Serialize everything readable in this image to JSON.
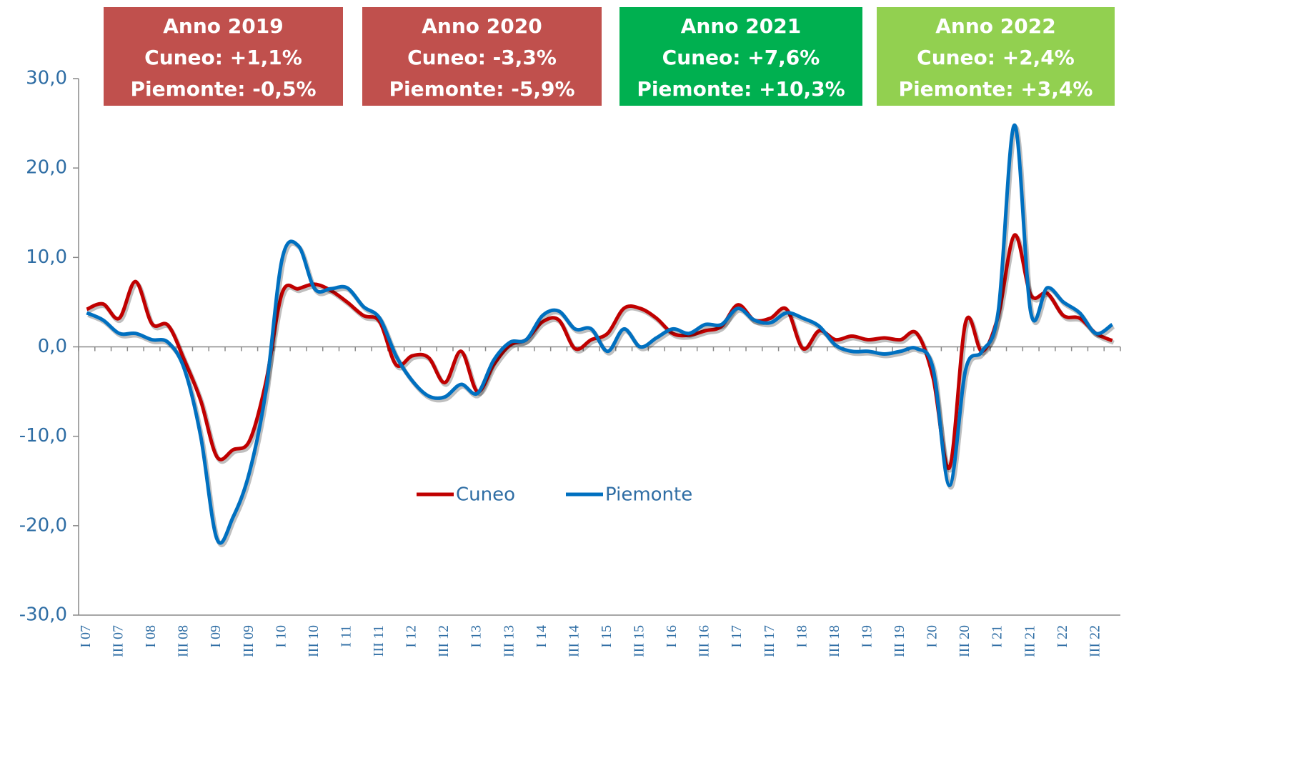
{
  "chart_data": {
    "type": "line",
    "categories": [
      "I 07",
      null,
      "III 07",
      null,
      "I 08",
      null,
      "III 08",
      null,
      "I 09",
      null,
      "III 09",
      null,
      "I 10",
      null,
      "III 10",
      null,
      "I 11",
      null,
      "III 11",
      null,
      "I 12",
      null,
      "III 12",
      null,
      "I 13",
      null,
      "III 13",
      null,
      "I 14",
      null,
      "III 14",
      null,
      "I 15",
      null,
      "III 15",
      null,
      "I 16",
      null,
      "III 16",
      null,
      "I 17",
      null,
      "III 17",
      null,
      "I 18",
      null,
      "III 18",
      null,
      "I 19",
      null,
      "III 19",
      null,
      "I 20",
      null,
      "III 20",
      null,
      "I 21",
      null,
      "III 21",
      null,
      "I 22",
      null,
      "III 22",
      null
    ],
    "series": [
      {
        "name": "Cuneo",
        "color": "#c00000",
        "values": [
          4.2,
          4.8,
          3.2,
          7.3,
          2.6,
          2.4,
          -1.5,
          -6,
          -12.3,
          -11.5,
          -10.5,
          -4,
          6.0,
          6.5,
          7.0,
          6.3,
          5.0,
          3.5,
          2.8,
          -2.0,
          -1.0,
          -1.2,
          -4.0,
          -0.5,
          -5.0,
          -2.0,
          0.2,
          0.8,
          2.8,
          3.0,
          -0.2,
          0.8,
          1.5,
          4.3,
          4.3,
          3.2,
          1.5,
          1.3,
          1.8,
          2.3,
          4.7,
          3.0,
          3.2,
          4.2,
          -0.2,
          1.8,
          0.8,
          1.2,
          0.8,
          1.0,
          0.8,
          1.5,
          -3.5,
          -13.5,
          2.8,
          -0.5,
          3.5,
          12.5,
          5.8,
          6.0,
          3.5,
          3.2,
          1.5,
          0.7
        ]
      },
      {
        "name": "Piemonte",
        "color": "#0070c0",
        "values": [
          3.8,
          3.0,
          1.5,
          1.5,
          0.8,
          0.5,
          -2.5,
          -10,
          -21.5,
          -19,
          -14,
          -5,
          9.8,
          11.3,
          6.5,
          6.5,
          6.6,
          4.5,
          3.2,
          -1.0,
          -3.8,
          -5.5,
          -5.6,
          -4.2,
          -5.2,
          -1.5,
          0.5,
          0.8,
          3.5,
          4.0,
          2.0,
          2.0,
          -0.5,
          2.0,
          0.0,
          1.0,
          2.0,
          1.5,
          2.5,
          2.5,
          4.3,
          3.0,
          2.7,
          3.8,
          3.2,
          2.3,
          0.2,
          -0.5,
          -0.5,
          -0.8,
          -0.5,
          -0.2,
          -2.5,
          -15.5,
          -2.5,
          -0.5,
          4.0,
          24.8,
          3.8,
          6.6,
          5.0,
          3.8,
          1.5,
          2.5
        ]
      }
    ],
    "ylim": [
      -30,
      30
    ],
    "yticks": [
      {
        "value": -30,
        "label": "-30,0"
      },
      {
        "value": -20,
        "label": "-20,0"
      },
      {
        "value": -10,
        "label": "-10,0"
      },
      {
        "value": 0,
        "label": "0,0"
      },
      {
        "value": 10,
        "label": "10,0"
      },
      {
        "value": 20,
        "label": "20,0"
      },
      {
        "value": 30,
        "label": "30,0"
      }
    ],
    "annotations": [
      {
        "color": "#c0504d",
        "lines": [
          "Anno 2019",
          "Cuneo: +1,1%",
          "Piemonte: -0,5%"
        ]
      },
      {
        "color": "#c0504d",
        "lines": [
          "Anno 2020",
          "Cuneo: -3,3%",
          "Piemonte: -5,9%"
        ]
      },
      {
        "color": "#00b050",
        "lines": [
          "Anno 2021",
          "Cuneo: +7,6%",
          "Piemonte: +10,3%"
        ]
      },
      {
        "color": "#92d050",
        "lines": [
          "Anno 2022",
          "Cuneo: +2,4%",
          "Piemonte: +3,4%"
        ]
      }
    ],
    "legend": "center"
  }
}
